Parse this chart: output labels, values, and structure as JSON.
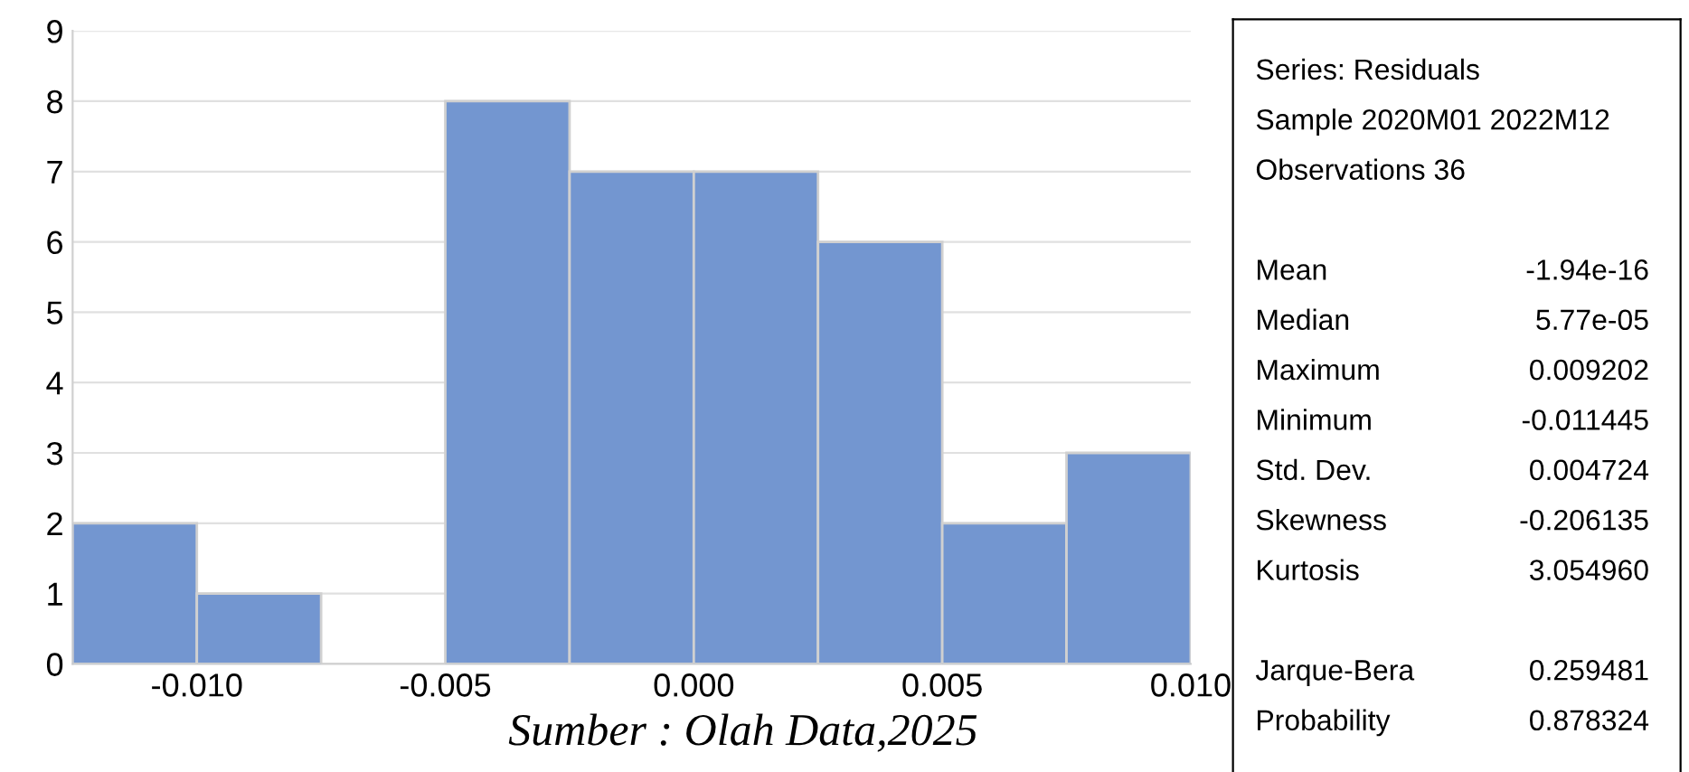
{
  "chart_data": [
    {
      "type": "histogram",
      "bins": [
        -0.0125,
        -0.01,
        -0.0075,
        -0.005,
        -0.0025,
        0,
        0.0025,
        0.005,
        0.0075,
        0.01
      ],
      "values": [
        2,
        1,
        0,
        8,
        7,
        7,
        6,
        2,
        3
      ],
      "color": "#7396d0",
      "xlim": [
        -0.0125,
        0.01
      ],
      "xticks": [
        {
          "value": -0.01,
          "label": "-0.010"
        },
        {
          "value": -0.005,
          "label": "-0.005"
        },
        {
          "value": 0,
          "label": "0.000"
        },
        {
          "value": 0.005,
          "label": "0.005"
        },
        {
          "value": 0.01,
          "label": "0.010"
        }
      ],
      "ylim": [
        0,
        9
      ],
      "yticks": [
        0,
        1,
        2,
        3,
        4,
        5,
        6,
        7,
        8,
        9
      ],
      "grid": "y",
      "annotations": [
        "Sumber : Olah Data,2025"
      ]
    },
    {
      "type": "other",
      "annotations": [
        "Series: Residuals",
        "Sample 2020M01 2022M12",
        "Observations 36",
        "Mean",
        "-1.94e-16",
        "Median",
        "5.77e-05",
        "Maximum",
        "0.009202",
        "Minimum",
        "-0.011445",
        "Std. Dev.",
        "0.004724",
        "Skewness",
        "-0.206135",
        "Kurtosis",
        "3.054960",
        "Jarque-Bera",
        "0.259481",
        "Probability",
        "0.878324"
      ]
    }
  ]
}
